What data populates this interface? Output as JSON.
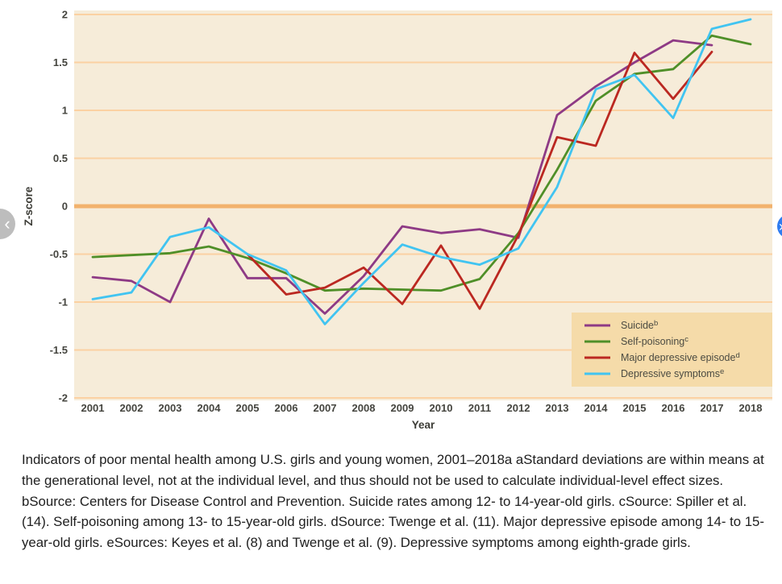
{
  "nav": {
    "prev_icon": "‹",
    "next_icon": "›"
  },
  "chart_data": {
    "type": "line",
    "xlabel": "Year",
    "ylabel": "Z-score",
    "ylim": [
      -2,
      2
    ],
    "grid": true,
    "legend_position": "bottom-right",
    "yticks": [
      "2",
      "1.5",
      "1",
      "0.5",
      "0",
      "-0.5",
      "-1",
      "-1.5",
      "-2"
    ],
    "categories": [
      "2001",
      "2002",
      "2003",
      "2004",
      "2005",
      "2006",
      "2007",
      "2008",
      "2009",
      "2010",
      "2011",
      "2012",
      "2013",
      "2014",
      "2015",
      "2016",
      "2017",
      "2018"
    ],
    "series": [
      {
        "name": "Suicide",
        "sup": "b",
        "color": "#8e3a85",
        "values": [
          -0.74,
          -0.78,
          -1.0,
          -0.13,
          -0.75,
          -0.75,
          -1.12,
          -0.73,
          -0.21,
          -0.28,
          -0.24,
          -0.33,
          0.95,
          1.25,
          1.5,
          1.73,
          1.68,
          null
        ]
      },
      {
        "name": "Self-poisoning",
        "sup": "c",
        "color": "#4f8f28",
        "values": [
          -0.53,
          -0.51,
          -0.49,
          -0.42,
          -0.54,
          -0.7,
          -0.88,
          -0.86,
          -0.87,
          -0.88,
          -0.76,
          -0.28,
          0.38,
          1.1,
          1.38,
          1.43,
          1.78,
          1.69
        ]
      },
      {
        "name": "Major depressive episode",
        "sup": "d",
        "color": "#bb2821",
        "values": [
          null,
          null,
          null,
          null,
          -0.5,
          -0.92,
          -0.85,
          -0.64,
          -1.02,
          -0.41,
          -1.07,
          -0.3,
          0.72,
          0.63,
          1.6,
          1.12,
          1.61,
          null
        ]
      },
      {
        "name": "Depressive symptoms",
        "sup": "e",
        "color": "#41c4f1",
        "values": [
          -0.97,
          -0.9,
          -0.32,
          -0.22,
          -0.5,
          -0.67,
          -1.23,
          -0.8,
          -0.4,
          -0.53,
          -0.61,
          -0.44,
          0.2,
          1.22,
          1.37,
          0.92,
          1.85,
          1.95
        ]
      }
    ],
    "colors": {
      "plot_bg": "#f6ecd9",
      "grid": "#fbd1a2",
      "zero_line": "#f2b26d",
      "legend_bg": "#f5dba9",
      "tick_text": "#45453f",
      "axis_text": "#3c3c36"
    }
  },
  "caption": {
    "text": "Indicators of poor mental health among U.S. girls and young women, 2001–2018a aStandard deviations are within means at the generational level, not at the individual level, and thus should not be used to calculate individual-level effect sizes. bSource: Centers for Disease Control and Prevention. Suicide rates among 12- to 14-year-old girls. cSource: Spiller et al. (14). Self-poisoning among 13- to 15-year-old girls. dSource: Twenge et al. (11). Major depressive episode among 14- to 15-year-old girls. eSources: Keyes et al. (8) and Twenge et al. (9). Depressive symptoms among eighth-grade girls."
  }
}
